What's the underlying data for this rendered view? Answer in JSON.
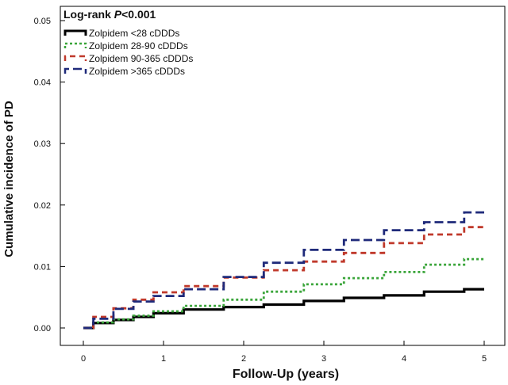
{
  "chart_data": {
    "type": "line",
    "annotation": {
      "prefix": "Log-rank ",
      "p": "P",
      "suffix": "<0.001"
    },
    "xlabel": "Follow-Up (years)",
    "ylabel": "Cumulative incidence of PD",
    "xlim": [
      0,
      5
    ],
    "ylim": [
      0,
      0.05
    ],
    "xticks": [
      "0",
      "1",
      "2",
      "3",
      "4",
      "5"
    ],
    "yticks": [
      "0.00",
      "0.01",
      "0.02",
      "0.03",
      "0.04",
      "0.05"
    ],
    "legend_position": "top-left",
    "grid": false,
    "series": [
      {
        "name": "Zolpidem <28 cDDDs",
        "color": "#000000",
        "dash": "solid",
        "x": [
          0,
          0.25,
          0.5,
          0.75,
          1,
          1.5,
          2,
          2.5,
          3,
          3.5,
          4,
          4.5,
          5
        ],
        "y": [
          0,
          0.0008,
          0.0013,
          0.0018,
          0.0024,
          0.003,
          0.0034,
          0.0038,
          0.0044,
          0.0049,
          0.0053,
          0.0059,
          0.0063
        ]
      },
      {
        "name": "Zolpidem 28-90 cDDDs",
        "color": "#3aa53a",
        "dash": "dotted",
        "x": [
          0,
          0.25,
          0.5,
          0.75,
          1,
          1.5,
          2,
          2.5,
          3,
          3.5,
          4,
          4.5,
          5
        ],
        "y": [
          0,
          0.0009,
          0.0014,
          0.002,
          0.0027,
          0.0036,
          0.0046,
          0.0059,
          0.0071,
          0.0081,
          0.0091,
          0.0103,
          0.0112
        ]
      },
      {
        "name": "Zolpidem 90-365 cDDDs",
        "color": "#c0392b",
        "dash": "dashed",
        "x": [
          0,
          0.25,
          0.5,
          0.75,
          1,
          1.5,
          2,
          2.5,
          3,
          3.5,
          4,
          4.5,
          5
        ],
        "y": [
          0,
          0.0018,
          0.0032,
          0.0046,
          0.0058,
          0.0068,
          0.0082,
          0.0094,
          0.0108,
          0.0122,
          0.0138,
          0.0152,
          0.0164
        ]
      },
      {
        "name": "Zolpidem >365 cDDDs",
        "color": "#1f2a7a",
        "dash": "longdash",
        "x": [
          0,
          0.25,
          0.5,
          0.75,
          1,
          1.5,
          2,
          2.5,
          3,
          3.5,
          4,
          4.5,
          5
        ],
        "y": [
          0,
          0.0015,
          0.0031,
          0.0043,
          0.0052,
          0.0063,
          0.0083,
          0.0106,
          0.0127,
          0.0143,
          0.0159,
          0.0172,
          0.0188
        ]
      }
    ]
  }
}
